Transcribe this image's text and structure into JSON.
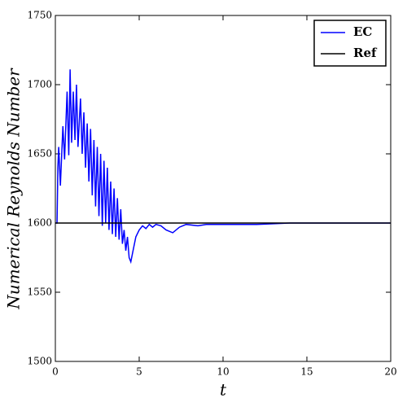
{
  "chart_data": {
    "type": "line",
    "xlabel": "t",
    "ylabel": "Numerical Reynolds Number",
    "xlim": [
      0,
      20
    ],
    "ylim": [
      1500,
      1750
    ],
    "xticks": [
      0,
      5,
      10,
      15,
      20
    ],
    "yticks": [
      1500,
      1550,
      1600,
      1650,
      1700,
      1750
    ],
    "legend": "upper right",
    "series": [
      {
        "name": "EC",
        "color": "#0000ff",
        "x": [
          0,
          0.1,
          0.15,
          0.2,
          0.3,
          0.45,
          0.55,
          0.7,
          0.8,
          0.88,
          0.97,
          1.07,
          1.17,
          1.26,
          1.35,
          1.5,
          1.6,
          1.7,
          1.8,
          1.9,
          2.0,
          2.1,
          2.2,
          2.3,
          2.4,
          2.5,
          2.6,
          2.7,
          2.8,
          2.9,
          3.0,
          3.1,
          3.2,
          3.3,
          3.4,
          3.5,
          3.6,
          3.7,
          3.8,
          3.9,
          4.0,
          4.1,
          4.2,
          4.3,
          4.4,
          4.5,
          4.6,
          4.8,
          5.0,
          5.2,
          5.4,
          5.6,
          5.8,
          6.0,
          6.3,
          6.6,
          7.0,
          7.4,
          7.8,
          8.5,
          9,
          10,
          12,
          14,
          16,
          18,
          20
        ],
        "values": [
          1600,
          1600,
          1640,
          1655,
          1627,
          1670,
          1646,
          1695,
          1649,
          1711,
          1658,
          1695,
          1660,
          1700,
          1655,
          1690,
          1650,
          1680,
          1640,
          1672,
          1630,
          1668,
          1620,
          1660,
          1612,
          1655,
          1605,
          1650,
          1598,
          1645,
          1600,
          1640,
          1595,
          1630,
          1592,
          1625,
          1590,
          1618,
          1588,
          1610,
          1585,
          1595,
          1580,
          1590,
          1575,
          1572,
          1578,
          1590,
          1595,
          1598,
          1596,
          1599,
          1597,
          1599,
          1598,
          1595,
          1593,
          1597,
          1599,
          1598,
          1599,
          1599,
          1599,
          1600,
          1600,
          1600,
          1600
        ]
      },
      {
        "name": "Ref",
        "color": "#000000",
        "x": [
          0,
          20
        ],
        "values": [
          1600,
          1600
        ]
      }
    ]
  }
}
